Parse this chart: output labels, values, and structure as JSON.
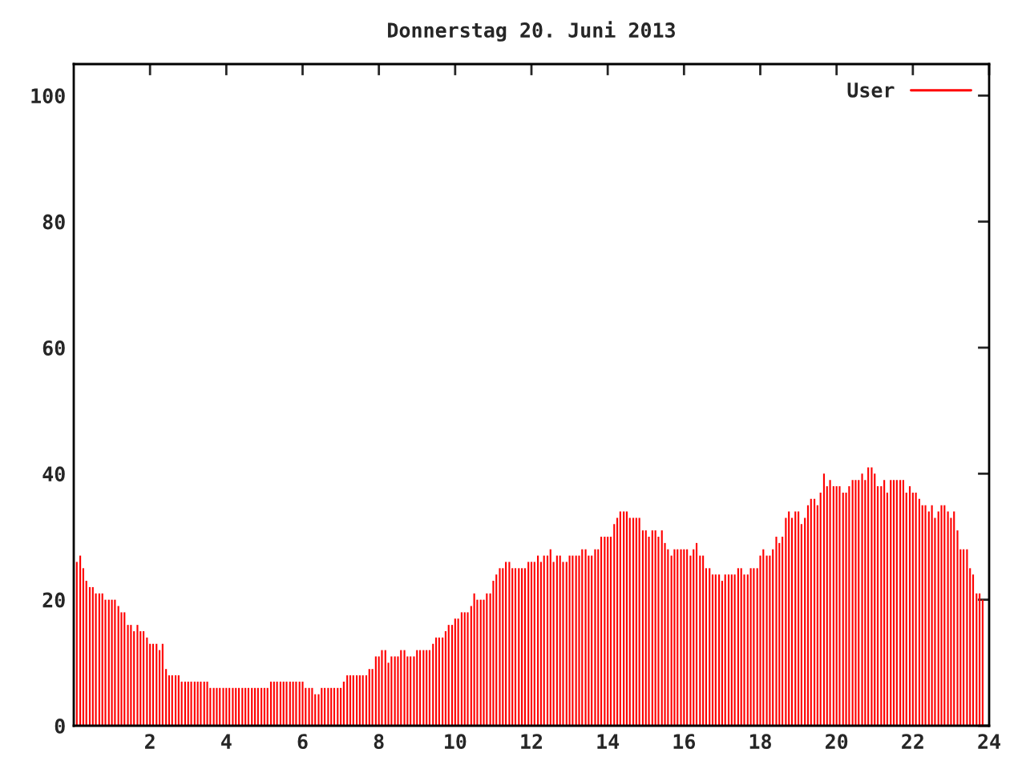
{
  "chart_data": {
    "type": "bar",
    "title": "Donnerstag 20. Juni 2013",
    "x": [
      0.08,
      0.17,
      0.25,
      0.33,
      0.42,
      0.5,
      0.58,
      0.67,
      0.75,
      0.83,
      0.92,
      1,
      1.08,
      1.17,
      1.25,
      1.33,
      1.42,
      1.5,
      1.58,
      1.67,
      1.75,
      1.83,
      1.92,
      2,
      2.08,
      2.17,
      2.25,
      2.33,
      2.42,
      2.5,
      2.58,
      2.67,
      2.75,
      2.83,
      2.92,
      3,
      3.08,
      3.17,
      3.25,
      3.33,
      3.42,
      3.5,
      3.58,
      3.67,
      3.75,
      3.83,
      3.92,
      4,
      4.08,
      4.17,
      4.25,
      4.33,
      4.42,
      4.5,
      4.58,
      4.67,
      4.75,
      4.83,
      4.92,
      5,
      5.08,
      5.17,
      5.25,
      5.33,
      5.42,
      5.5,
      5.58,
      5.67,
      5.75,
      5.83,
      5.92,
      6,
      6.08,
      6.17,
      6.25,
      6.33,
      6.42,
      6.5,
      6.58,
      6.67,
      6.75,
      6.83,
      6.92,
      7,
      7.08,
      7.17,
      7.25,
      7.33,
      7.42,
      7.5,
      7.58,
      7.67,
      7.75,
      7.83,
      7.92,
      8,
      8.08,
      8.17,
      8.25,
      8.33,
      8.42,
      8.5,
      8.58,
      8.67,
      8.75,
      8.83,
      8.92,
      9,
      9.08,
      9.17,
      9.25,
      9.33,
      9.42,
      9.5,
      9.58,
      9.67,
      9.75,
      9.83,
      9.92,
      10,
      10.08,
      10.17,
      10.25,
      10.33,
      10.42,
      10.5,
      10.58,
      10.67,
      10.75,
      10.83,
      10.92,
      11,
      11.08,
      11.17,
      11.25,
      11.33,
      11.42,
      11.5,
      11.58,
      11.67,
      11.75,
      11.83,
      11.92,
      12,
      12.08,
      12.17,
      12.25,
      12.33,
      12.42,
      12.5,
      12.58,
      12.67,
      12.75,
      12.83,
      12.92,
      13,
      13.08,
      13.17,
      13.25,
      13.33,
      13.42,
      13.5,
      13.58,
      13.67,
      13.75,
      13.83,
      13.92,
      14,
      14.08,
      14.17,
      14.25,
      14.33,
      14.42,
      14.5,
      14.58,
      14.67,
      14.75,
      14.83,
      14.92,
      15,
      15.08,
      15.17,
      15.25,
      15.33,
      15.42,
      15.5,
      15.58,
      15.67,
      15.75,
      15.83,
      15.92,
      16,
      16.08,
      16.17,
      16.25,
      16.33,
      16.42,
      16.5,
      16.58,
      16.67,
      16.75,
      16.83,
      16.92,
      17,
      17.08,
      17.17,
      17.25,
      17.33,
      17.42,
      17.5,
      17.58,
      17.67,
      17.75,
      17.83,
      17.92,
      18,
      18.08,
      18.17,
      18.25,
      18.33,
      18.42,
      18.5,
      18.58,
      18.67,
      18.75,
      18.83,
      18.92,
      19,
      19.08,
      19.17,
      19.25,
      19.33,
      19.42,
      19.5,
      19.58,
      19.67,
      19.75,
      19.83,
      19.92,
      20,
      20.08,
      20.17,
      20.25,
      20.33,
      20.42,
      20.5,
      20.58,
      20.67,
      20.75,
      20.83,
      20.92,
      21,
      21.08,
      21.17,
      21.25,
      21.33,
      21.42,
      21.5,
      21.58,
      21.67,
      21.75,
      21.83,
      21.92,
      22,
      22.08,
      22.17,
      22.25,
      22.33,
      22.42,
      22.5,
      22.58,
      22.67,
      22.75,
      22.83,
      22.92,
      23,
      23.08,
      23.17,
      23.25,
      23.33,
      23.42,
      23.5,
      23.58,
      23.67,
      23.75,
      23.83
    ],
    "series": [
      {
        "name": "User",
        "color": "#ff0000",
        "values": [
          26,
          27,
          25,
          23,
          22,
          22,
          21,
          21,
          21,
          20,
          20,
          20,
          20,
          19,
          18,
          18,
          16,
          16,
          15,
          16,
          15,
          15,
          14,
          13,
          13,
          13,
          12,
          13,
          9,
          8,
          8,
          8,
          8,
          7,
          7,
          7,
          7,
          7,
          7,
          7,
          7,
          7,
          6,
          6,
          6,
          6,
          6,
          6,
          6,
          6,
          6,
          6,
          6,
          6,
          6,
          6,
          6,
          6,
          6,
          6,
          6,
          7,
          7,
          7,
          7,
          7,
          7,
          7,
          7,
          7,
          7,
          7,
          6,
          6,
          6,
          5,
          5,
          6,
          6,
          6,
          6,
          6,
          6,
          6,
          7,
          8,
          8,
          8,
          8,
          8,
          8,
          8,
          9,
          9,
          11,
          11,
          12,
          12,
          10,
          11,
          11,
          11,
          12,
          12,
          11,
          11,
          11,
          12,
          12,
          12,
          12,
          12,
          13,
          14,
          14,
          14,
          15,
          16,
          16,
          17,
          17,
          18,
          18,
          18,
          19,
          21,
          20,
          20,
          20,
          21,
          21,
          23,
          24,
          25,
          25,
          26,
          26,
          25,
          25,
          25,
          25,
          25,
          26,
          26,
          26,
          27,
          26,
          27,
          27,
          28,
          26,
          27,
          27,
          26,
          26,
          27,
          27,
          27,
          27,
          28,
          28,
          27,
          27,
          28,
          28,
          30,
          30,
          30,
          30,
          32,
          33,
          34,
          34,
          34,
          33,
          33,
          33,
          33,
          31,
          31,
          30,
          31,
          31,
          30,
          31,
          29,
          28,
          27,
          28,
          28,
          28,
          28,
          28,
          27,
          28,
          29,
          27,
          27,
          25,
          25,
          24,
          24,
          24,
          23,
          24,
          24,
          24,
          24,
          25,
          25,
          24,
          24,
          25,
          25,
          25,
          27,
          28,
          27,
          27,
          28,
          30,
          29,
          30,
          33,
          34,
          33,
          34,
          34,
          32,
          33,
          35,
          36,
          36,
          35,
          37,
          40,
          38,
          39,
          38,
          38,
          38,
          37,
          37,
          38,
          39,
          39,
          39,
          40,
          39,
          41,
          41,
          40,
          38,
          38,
          39,
          37,
          39,
          39,
          39,
          39,
          39,
          37,
          38,
          37,
          37,
          36,
          35,
          35,
          34,
          35,
          33,
          34,
          35,
          35,
          34,
          33,
          34,
          31,
          28,
          28,
          28,
          25,
          24,
          21,
          21,
          20
        ]
      }
    ],
    "xlim": [
      0,
      24
    ],
    "ylim": [
      0,
      105
    ],
    "xticks": [
      2,
      4,
      6,
      8,
      10,
      12,
      14,
      16,
      18,
      20,
      22,
      24
    ],
    "yticks": [
      0,
      20,
      40,
      60,
      80,
      100
    ],
    "legend": "top right"
  }
}
